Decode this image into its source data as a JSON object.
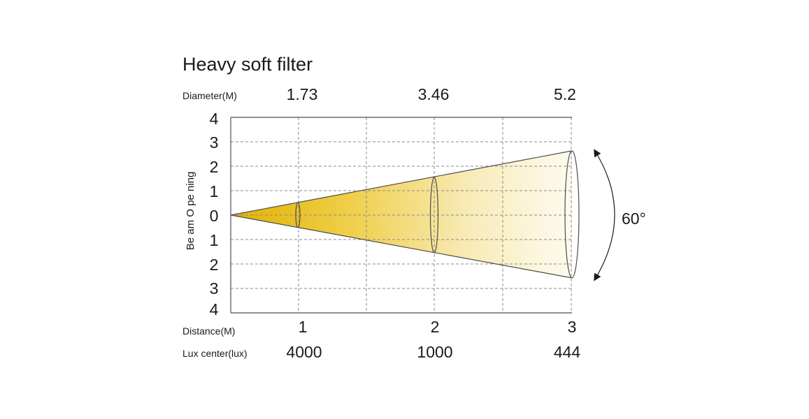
{
  "title": "Heavy soft filter",
  "diameter": {
    "label": "Diameter(M)",
    "values": [
      "1.73",
      "3.46",
      "5.2"
    ]
  },
  "distance": {
    "label": "Distance(M)",
    "values": [
      "1",
      "2",
      "3"
    ]
  },
  "lux": {
    "label": "Lux center(lux)",
    "values": [
      "4000",
      "1000",
      "444"
    ]
  },
  "beam_axis": {
    "label": "Be am O pe ning",
    "ticks": [
      "4",
      "3",
      "2",
      "1",
      "0",
      "1",
      "2",
      "3",
      "4"
    ]
  },
  "angle_label": "60°",
  "colors": {
    "beam_start": "#e2b100",
    "beam_end": "#fdfbef",
    "grid": "#8a8a8a",
    "frame": "#4d4d4d",
    "outline": "#4d4d4d"
  }
}
